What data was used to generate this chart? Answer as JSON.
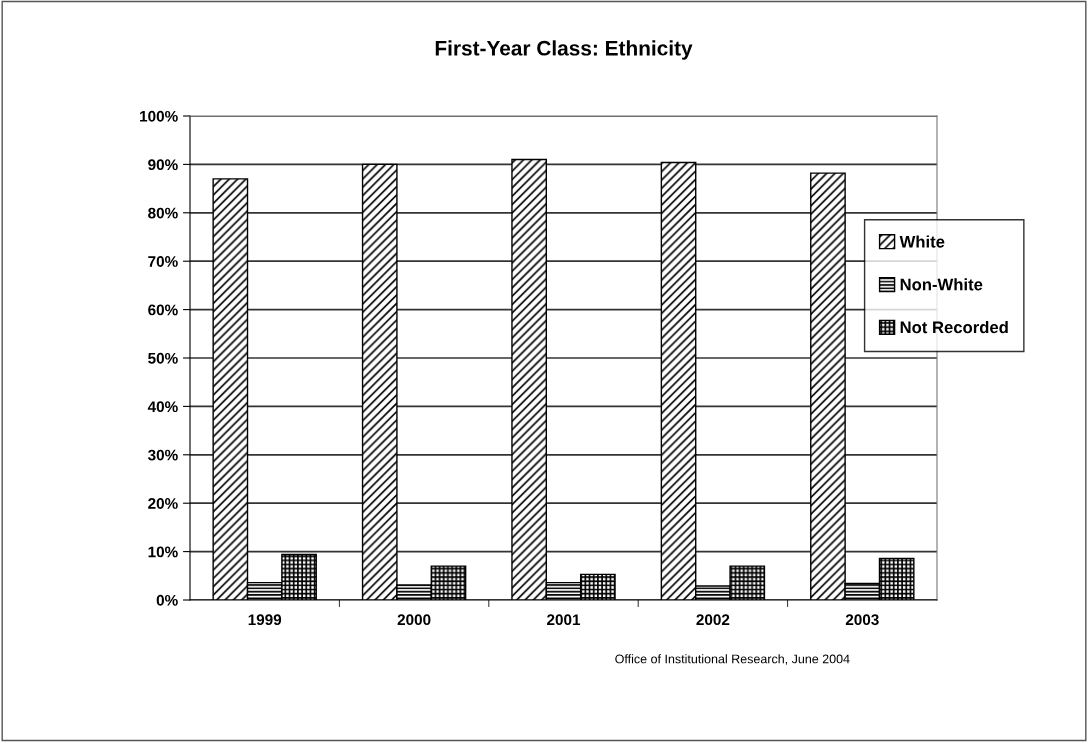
{
  "chart_data": {
    "type": "bar",
    "title": "First-Year Class: Ethnicity",
    "categories": [
      "1999",
      "2000",
      "2001",
      "2002",
      "2003"
    ],
    "series": [
      {
        "name": "White",
        "color": "#000000",
        "values": [
          87.0,
          90.0,
          91.0,
          90.4,
          88.2
        ]
      },
      {
        "name": "Non-White",
        "color": "#000000",
        "values": [
          3.6,
          3.1,
          3.6,
          2.9,
          3.4
        ]
      },
      {
        "name": "Not Recorded",
        "color": "#000000",
        "values": [
          9.4,
          7.0,
          5.3,
          7.0,
          8.6
        ]
      }
    ],
    "ylim": [
      0,
      100
    ],
    "yticks": [
      {
        "value": 0,
        "label": "0%"
      },
      {
        "value": 10,
        "label": "10%"
      },
      {
        "value": 20,
        "label": "20%"
      },
      {
        "value": 30,
        "label": "30%"
      },
      {
        "value": 40,
        "label": "40%"
      },
      {
        "value": 50,
        "label": "50%"
      },
      {
        "value": 60,
        "label": "60%"
      },
      {
        "value": 70,
        "label": "70%"
      },
      {
        "value": 80,
        "label": "80%"
      },
      {
        "value": 90,
        "label": "90%"
      },
      {
        "value": 100,
        "label": "100%"
      }
    ],
    "grid": "y",
    "legend": "right",
    "annotations": [
      "Office of Institutional Research, June 2004"
    ]
  }
}
